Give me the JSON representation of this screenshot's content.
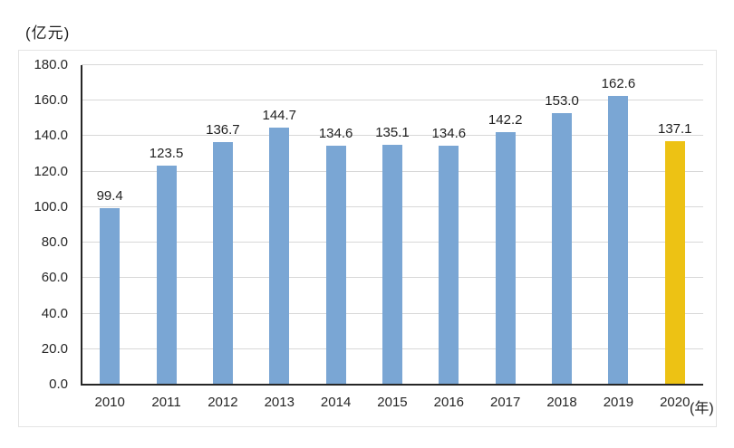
{
  "chart": {
    "unit_label": "(亿元)",
    "x_unit_label": "(年)"
  },
  "chart_data": {
    "type": "bar",
    "categories": [
      "2010",
      "2011",
      "2012",
      "2013",
      "2014",
      "2015",
      "2016",
      "2017",
      "2018",
      "2019",
      "2020"
    ],
    "values": [
      99.4,
      123.5,
      136.7,
      144.7,
      134.6,
      135.1,
      134.6,
      142.2,
      153.0,
      162.6,
      137.1
    ],
    "value_labels": [
      "99.4",
      "123.5",
      "136.7",
      "144.7",
      "134.6",
      "135.1",
      "134.6",
      "142.2",
      "153.0",
      "162.6",
      "137.1"
    ],
    "title": "",
    "xlabel": "(年)",
    "ylabel": "(亿元)",
    "ylim": [
      0,
      180
    ],
    "ytick_step": 20,
    "ytick_labels": [
      "180.0",
      "160.0",
      "140.0",
      "120.0",
      "100.0",
      "80.0",
      "60.0",
      "40.0",
      "20.0",
      "0.0"
    ],
    "grid": true,
    "legend": false,
    "bar_default_color": "#7aa6d4",
    "bar_highlight_color": "#edc214",
    "highlight_index": 10
  },
  "colors": {
    "bar_blue": "#7aa6d4",
    "bar_gold": "#edc214",
    "gridline": "#d8d8d8",
    "axis_line": "#262626",
    "tick_text": "#262626",
    "value_text": "#1f1f1f",
    "frame_border": "#e4e4e4",
    "background": "#ffffff"
  }
}
